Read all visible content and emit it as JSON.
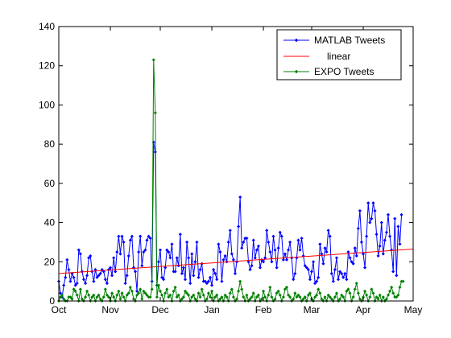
{
  "chart_data": {
    "type": "line",
    "title": "",
    "xlabel": "",
    "ylabel": "",
    "x_domain": [
      "2011-10-01",
      "2012-05-01"
    ],
    "x_ticks": [
      {
        "label": "Oct",
        "date": "2011-10-01"
      },
      {
        "label": "Nov",
        "date": "2011-11-01"
      },
      {
        "label": "Dec",
        "date": "2011-12-01"
      },
      {
        "label": "Jan",
        "date": "2012-01-01"
      },
      {
        "label": "Feb",
        "date": "2012-02-01"
      },
      {
        "label": "Mar",
        "date": "2012-03-01"
      },
      {
        "label": "Apr",
        "date": "2012-04-01"
      },
      {
        "label": "May",
        "date": "2012-05-01"
      }
    ],
    "ylim": [
      0,
      140
    ],
    "y_ticks": [
      0,
      20,
      40,
      60,
      80,
      100,
      120,
      140
    ],
    "grid": false,
    "legend_position": "top-right",
    "series": [
      {
        "name": "MATLAB Tweets",
        "color": "#0000ff",
        "marker": "diamond",
        "style": "line",
        "x_start": "2011-10-01",
        "x_step_days": 1,
        "values": [
          10,
          4,
          2,
          8,
          12,
          21,
          16,
          10,
          14,
          12,
          8,
          9,
          26,
          24,
          15,
          11,
          9,
          13,
          22,
          23,
          15,
          10,
          16,
          12,
          13,
          14,
          16,
          15,
          11,
          9,
          16,
          17,
          13,
          22,
          15,
          25,
          33,
          24,
          33,
          30,
          9,
          13,
          23,
          31,
          33,
          17,
          15,
          5,
          25,
          33,
          18,
          25,
          26,
          31,
          33,
          32,
          10,
          81,
          76,
          8,
          20,
          26,
          12,
          11,
          17,
          26,
          25,
          22,
          29,
          15,
          15,
          22,
          18,
          34,
          14,
          17,
          11,
          30,
          22,
          9,
          24,
          13,
          20,
          30,
          12,
          16,
          19,
          10,
          10,
          9,
          10,
          12,
          8,
          16,
          14,
          11,
          29,
          25,
          10,
          21,
          23,
          20,
          30,
          36,
          24,
          21,
          14,
          20,
          38,
          53,
          27,
          30,
          32,
          32,
          20,
          16,
          18,
          31,
          22,
          26,
          28,
          17,
          21,
          20,
          22,
          36,
          30,
          25,
          20,
          33,
          26,
          17,
          27,
          35,
          33,
          21,
          24,
          21,
          26,
          30,
          22,
          11,
          14,
          22,
          31,
          26,
          32,
          23,
          18,
          17,
          16,
          11,
          15,
          20,
          9,
          10,
          12,
          29,
          24,
          19,
          27,
          25,
          36,
          33,
          14,
          10,
          16,
          22,
          11,
          15,
          14,
          12,
          14,
          11,
          25,
          22,
          20,
          19,
          27,
          23,
          37,
          46,
          30,
          24,
          17,
          33,
          50,
          40,
          42,
          50,
          46,
          34,
          23,
          28,
          40,
          24,
          31,
          35,
          44,
          33,
          26,
          15,
          42,
          13,
          38,
          29,
          44
        ]
      },
      {
        "name": "linear",
        "color": "#ff0000",
        "style": "line",
        "points": [
          {
            "x": "2011-10-01",
            "y": 14
          },
          {
            "x": "2012-05-01",
            "y": 26.5
          }
        ]
      },
      {
        "name": "EXPO Tweets",
        "color": "#008000",
        "marker": "diamond",
        "style": "line",
        "x_start": "2011-10-01",
        "x_step_days": 1,
        "values": [
          0,
          2,
          3,
          1,
          0,
          0,
          2,
          2,
          1,
          6,
          5,
          3,
          0,
          6,
          1,
          0,
          2,
          5,
          3,
          0,
          2,
          3,
          0,
          2,
          3,
          1,
          0,
          2,
          6,
          3,
          2,
          0,
          4,
          2,
          0,
          3,
          5,
          1,
          4,
          2,
          0,
          3,
          4,
          7,
          5,
          1,
          0,
          3,
          4,
          6,
          1,
          5,
          4,
          3,
          2,
          2,
          6,
          123,
          96,
          2,
          8,
          5,
          3,
          0,
          4,
          6,
          2,
          3,
          0,
          5,
          7,
          2,
          3,
          0,
          1,
          2,
          5,
          4,
          3,
          0,
          2,
          3,
          1,
          0,
          4,
          2,
          6,
          3,
          0,
          1,
          4,
          2,
          5,
          0,
          2,
          3,
          0,
          1,
          2,
          0,
          3,
          2,
          0,
          4,
          6,
          2,
          0,
          1,
          5,
          10,
          6,
          2,
          0,
          3,
          0,
          1,
          2,
          4,
          0,
          2,
          3,
          0,
          1,
          5,
          2,
          0,
          3,
          7,
          2,
          0,
          1,
          4,
          5,
          3,
          0,
          2,
          6,
          7,
          3,
          2,
          0,
          1,
          4,
          2,
          3,
          2,
          0,
          1,
          2,
          0,
          3,
          4,
          1,
          0,
          2,
          3,
          6,
          4,
          1,
          0,
          2,
          0,
          3,
          2,
          1,
          0,
          2,
          4,
          0,
          1,
          3,
          2,
          0,
          5,
          6,
          4,
          0,
          2,
          6,
          9,
          4,
          1,
          0,
          2,
          5,
          3,
          0,
          2,
          6,
          4,
          0,
          2,
          1,
          3,
          0,
          2,
          0,
          1,
          3,
          5,
          7,
          4,
          2,
          2,
          3,
          7,
          10,
          10
        ]
      }
    ]
  }
}
